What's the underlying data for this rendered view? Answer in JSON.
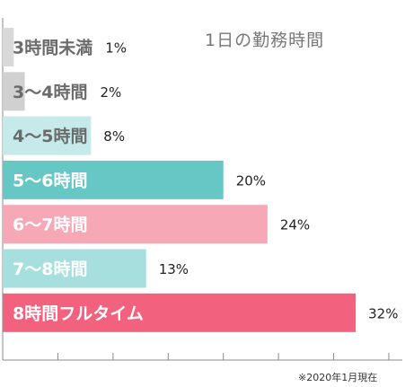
{
  "chart_data": {
    "type": "bar",
    "orientation": "horizontal",
    "title": "1日の勤務時間",
    "footnote": "※2020年1月現在",
    "xlim": [
      0,
      35
    ],
    "grid": false,
    "categories": [
      "3時間未満",
      "3〜4時間",
      "4〜5時間",
      "5〜6時間",
      "6〜7時間",
      "7〜8時間",
      "8時間フルタイム"
    ],
    "values": [
      1,
      2,
      8,
      20,
      24,
      13,
      32
    ],
    "value_labels": [
      "1%",
      "2%",
      "8%",
      "20%",
      "24%",
      "13%",
      "32%"
    ],
    "colors": [
      "#d9d9d9",
      "#d0d0d0",
      "#c6e9ea",
      "#66c7c4",
      "#f7a8b6",
      "#a6dfde",
      "#f2627f"
    ],
    "label_colors": [
      "#6b6b6b",
      "#6b6b6b",
      "#6b6b6b",
      "#ffffff",
      "#ffffff",
      "#ffffff",
      "#ffffff"
    ]
  }
}
